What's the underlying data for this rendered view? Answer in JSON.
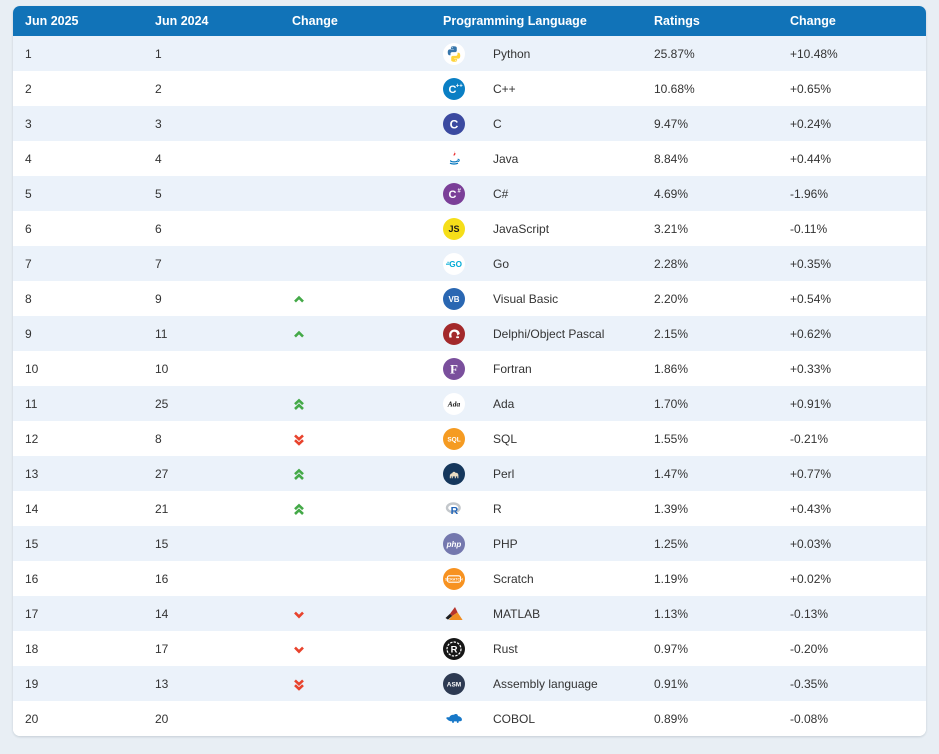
{
  "theme": {
    "header_bg": "#1173b8",
    "header_fg": "#ffffff",
    "row_alt_bg": "#ebf2fa",
    "row_bg": "#ffffff",
    "page_bg": "#e8eef4",
    "text_color": "#333333",
    "up_arrow_color": "#44a948",
    "down_arrow_color": "#e8432d"
  },
  "table": {
    "columns": [
      "Jun 2025",
      "Jun 2024",
      "Change",
      "Programming Language",
      "Ratings",
      "Change"
    ],
    "rows": [
      {
        "rank_2025": "1",
        "rank_2024": "1",
        "change": "",
        "language": "Python",
        "ratings": "25.87%",
        "ratings_change": "+10.48%",
        "icon": {
          "kind": "python",
          "name": "python-icon",
          "colors": {
            "top": "#3776ab",
            "bottom": "#ffd43b"
          }
        }
      },
      {
        "rank_2025": "2",
        "rank_2024": "2",
        "change": "",
        "language": "C++",
        "ratings": "10.68%",
        "ratings_change": "+0.65%",
        "icon": {
          "kind": "circle-text",
          "name": "cpp-icon",
          "bg": "#0a7fc4",
          "fg": "#ffffff",
          "text": "C",
          "sup": "++",
          "fs": 11
        }
      },
      {
        "rank_2025": "3",
        "rank_2024": "3",
        "change": "",
        "language": "C",
        "ratings": "9.47%",
        "ratings_change": "+0.24%",
        "icon": {
          "kind": "circle-text",
          "name": "c-icon",
          "bg": "#3b4aa0",
          "fg": "#ffffff",
          "text": "C",
          "fs": 12
        }
      },
      {
        "rank_2025": "4",
        "rank_2024": "4",
        "change": "",
        "language": "Java",
        "ratings": "8.84%",
        "ratings_change": "+0.44%",
        "icon": {
          "kind": "java",
          "name": "java-icon",
          "colors": {
            "cup": "#0074bd",
            "steam": "#ea2d2e"
          }
        }
      },
      {
        "rank_2025": "5",
        "rank_2024": "5",
        "change": "",
        "language": "C#",
        "ratings": "4.69%",
        "ratings_change": "-1.96%",
        "icon": {
          "kind": "circle-text",
          "name": "csharp-icon",
          "bg": "#7b3f98",
          "fg": "#ffffff",
          "text": "C",
          "sup": "#",
          "fs": 11
        }
      },
      {
        "rank_2025": "6",
        "rank_2024": "6",
        "change": "",
        "language": "JavaScript",
        "ratings": "3.21%",
        "ratings_change": "-0.11%",
        "icon": {
          "kind": "circle-text",
          "name": "javascript-icon",
          "bg": "#f5de19",
          "fg": "#1a1a1a",
          "text": "JS",
          "fs": 9
        }
      },
      {
        "rank_2025": "7",
        "rank_2024": "7",
        "change": "",
        "language": "Go",
        "ratings": "2.28%",
        "ratings_change": "+0.35%",
        "icon": {
          "kind": "go",
          "name": "go-icon",
          "colors": {
            "main": "#00abd6"
          }
        }
      },
      {
        "rank_2025": "8",
        "rank_2024": "9",
        "change": "up",
        "language": "Visual Basic",
        "ratings": "2.20%",
        "ratings_change": "+0.54%",
        "icon": {
          "kind": "circle-text",
          "name": "visual-basic-icon",
          "bg": "#2a67b2",
          "fg": "#ffffff",
          "text": "VB",
          "fs": 8
        }
      },
      {
        "rank_2025": "9",
        "rank_2024": "11",
        "change": "up",
        "language": "Delphi/Object Pascal",
        "ratings": "2.15%",
        "ratings_change": "+0.62%",
        "icon": {
          "kind": "delphi",
          "name": "delphi-icon",
          "colors": {
            "bg": "#a3292b",
            "helmet": "#ffffff"
          }
        }
      },
      {
        "rank_2025": "10",
        "rank_2024": "10",
        "change": "",
        "language": "Fortran",
        "ratings": "1.86%",
        "ratings_change": "+0.33%",
        "icon": {
          "kind": "circle-text",
          "name": "fortran-icon",
          "bg": "#7a4f9c",
          "fg": "#ffffff",
          "text": "F",
          "fs": 13,
          "serif": true
        }
      },
      {
        "rank_2025": "11",
        "rank_2024": "25",
        "change": "up2",
        "language": "Ada",
        "ratings": "1.70%",
        "ratings_change": "+0.91%",
        "icon": {
          "kind": "circle-text",
          "name": "ada-icon",
          "bg": "#ffffff",
          "fg": "#1b1b1b",
          "text": "Ada",
          "fs": 7.5,
          "italic": true,
          "serif": true
        }
      },
      {
        "rank_2025": "12",
        "rank_2024": "8",
        "change": "down2",
        "language": "SQL",
        "ratings": "1.55%",
        "ratings_change": "-0.21%",
        "icon": {
          "kind": "circle-text",
          "name": "sql-icon",
          "bg": "#f59b22",
          "fg": "#ffffff",
          "text": "SQL",
          "fs": 6.5
        }
      },
      {
        "rank_2025": "13",
        "rank_2024": "27",
        "change": "up2",
        "language": "Perl",
        "ratings": "1.47%",
        "ratings_change": "+0.77%",
        "icon": {
          "kind": "perl",
          "name": "perl-icon",
          "colors": {
            "bg": "#15375c",
            "camel": "#e9dcc2"
          }
        }
      },
      {
        "rank_2025": "14",
        "rank_2024": "21",
        "change": "up2",
        "language": "R",
        "ratings": "1.39%",
        "ratings_change": "+0.43%",
        "icon": {
          "kind": "r",
          "name": "r-icon",
          "colors": {
            "ring": "#c3c7cb",
            "letter": "#2265b8"
          }
        }
      },
      {
        "rank_2025": "15",
        "rank_2024": "15",
        "change": "",
        "language": "PHP",
        "ratings": "1.25%",
        "ratings_change": "+0.03%",
        "icon": {
          "kind": "circle-text",
          "name": "php-icon",
          "bg": "#7478ae",
          "fg": "#ffffff",
          "text": "php",
          "fs": 8,
          "italic": true
        }
      },
      {
        "rank_2025": "16",
        "rank_2024": "16",
        "change": "",
        "language": "Scratch",
        "ratings": "1.19%",
        "ratings_change": "+0.02%",
        "icon": {
          "kind": "scratch",
          "name": "scratch-icon",
          "colors": {
            "bg": "#f79220",
            "fg": "#ffffff"
          }
        }
      },
      {
        "rank_2025": "17",
        "rank_2024": "14",
        "change": "down",
        "language": "MATLAB",
        "ratings": "1.13%",
        "ratings_change": "-0.13%",
        "icon": {
          "kind": "matlab",
          "name": "matlab-icon",
          "colors": {
            "dark": "#1d1d1d",
            "red": "#b6352c",
            "orange": "#ef8d22"
          }
        }
      },
      {
        "rank_2025": "18",
        "rank_2024": "17",
        "change": "down",
        "language": "Rust",
        "ratings": "0.97%",
        "ratings_change": "-0.20%",
        "icon": {
          "kind": "rust",
          "name": "rust-icon",
          "colors": {
            "bg": "#161616",
            "fg": "#ffffff"
          }
        }
      },
      {
        "rank_2025": "19",
        "rank_2024": "13",
        "change": "down2",
        "language": "Assembly language",
        "ratings": "0.91%",
        "ratings_change": "-0.35%",
        "icon": {
          "kind": "circle-text",
          "name": "assembly-icon",
          "bg": "#2d3a52",
          "fg": "#ffffff",
          "text": "ASM",
          "fs": 6.5
        }
      },
      {
        "rank_2025": "20",
        "rank_2024": "20",
        "change": "",
        "language": "COBOL",
        "ratings": "0.89%",
        "ratings_change": "-0.08%",
        "icon": {
          "kind": "cobol",
          "name": "cobol-icon",
          "colors": {
            "body": "#1878c8"
          }
        }
      }
    ]
  }
}
